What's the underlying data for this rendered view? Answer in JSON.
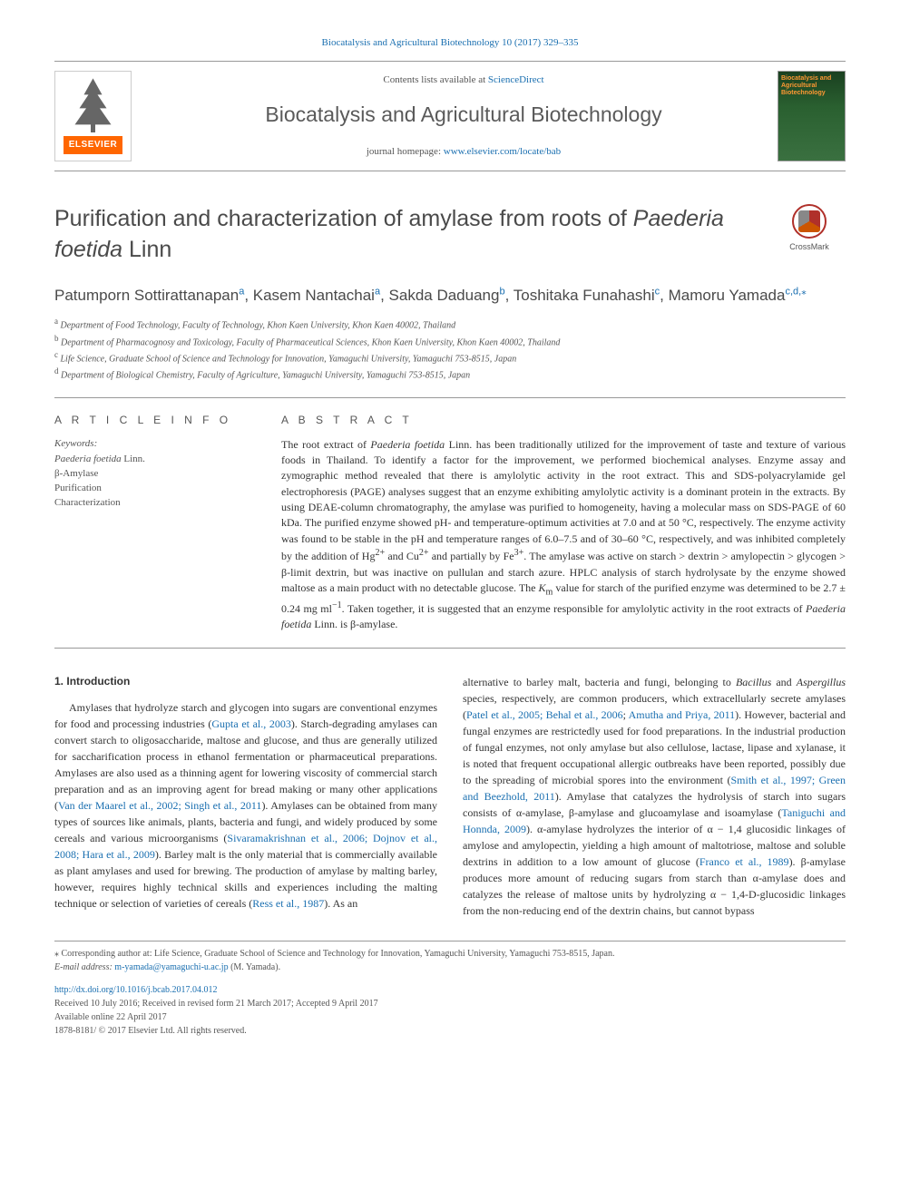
{
  "header": {
    "top_journal_ref": "Biocatalysis and Agricultural Biotechnology 10 (2017) 329–335",
    "contents_prefix": "Contents lists available at ",
    "contents_link": "ScienceDirect",
    "journal_name": "Biocatalysis and Agricultural Biotechnology",
    "homepage_prefix": "journal homepage: ",
    "homepage_link": "www.elsevier.com/locate/bab",
    "elsevier_label": "ELSEVIER",
    "cover_text": "Biocatalysis and Agricultural Biotechnology",
    "crossmark_label": "CrossMark"
  },
  "article": {
    "title_pre": "Purification and characterization of amylase from roots of ",
    "title_species": "Paederia foetida",
    "title_post": " Linn",
    "authors_html": "Patumporn Sottirattanapan<sup>a</sup>, Kasem Nantachai<sup>a</sup>, Sakda Daduang<sup>b</sup>, Toshitaka Funahashi<sup>c</sup>, Mamoru Yamada<sup>c,d,</sup>",
    "corr_mark": "⁎"
  },
  "affiliations": [
    {
      "sup": "a",
      "text": "Department of Food Technology, Faculty of Technology, Khon Kaen University, Khon Kaen 40002, Thailand"
    },
    {
      "sup": "b",
      "text": "Department of Pharmacognosy and Toxicology, Faculty of Pharmaceutical Sciences, Khon Kaen University, Khon Kaen 40002, Thailand"
    },
    {
      "sup": "c",
      "text": "Life Science, Graduate School of Science and Technology for Innovation, Yamaguchi University, Yamaguchi 753-8515, Japan"
    },
    {
      "sup": "d",
      "text": "Department of Biological Chemistry, Faculty of Agriculture, Yamaguchi University, Yamaguchi 753-8515, Japan"
    }
  ],
  "article_info": {
    "heading": "A R T I C L E  I N F O",
    "keywords_label": "Keywords:",
    "keywords": [
      "<em>Paederia foetida</em> Linn.",
      "β-Amylase",
      "Purification",
      "Characterization"
    ]
  },
  "abstract": {
    "heading": "A B S T R A C T",
    "text": "The root extract of <em>Paederia foetida</em> Linn. has been traditionally utilized for the improvement of taste and texture of various foods in Thailand. To identify a factor for the improvement, we performed biochemical analyses. Enzyme assay and zymographic method revealed that there is amylolytic activity in the root extract. This and SDS-polyacrylamide gel electrophoresis (PAGE) analyses suggest that an enzyme exhibiting amylolytic activity is a dominant protein in the extracts. By using DEAE-column chromatography, the amylase was purified to homogeneity, having a molecular mass on SDS-PAGE of 60 kDa. The purified enzyme showed pH- and temperature-optimum activities at 7.0 and at 50 °C, respectively. The enzyme activity was found to be stable in the pH and temperature ranges of 6.0–7.5 and of 30–60 °C, respectively, and was inhibited completely by the addition of Hg<sup>2+</sup> and Cu<sup>2+</sup> and partially by Fe<sup>3+</sup>. The amylase was active on starch > dextrin > amylopectin > glycogen > β-limit dextrin, but was inactive on pullulan and starch azure. HPLC analysis of starch hydrolysate by the enzyme showed maltose as a main product with no detectable glucose. The <em>K</em><sub>m</sub> value for starch of the purified enzyme was determined to be 2.7 ± 0.24 mg ml<sup>−1</sup>. Taken together, it is suggested that an enzyme responsible for amylolytic activity in the root extracts of <em>Paederia foetida</em> Linn. is β-amylase."
  },
  "body": {
    "section_number": "1.",
    "section_title": "Introduction",
    "col1": "Amylases that hydrolyze starch and glycogen into sugars are conventional enzymes for food and processing industries (<span class=\"cite\">Gupta et al., 2003</span>). Starch-degrading amylases can convert starch to oligosaccharide, maltose and glucose, and thus are generally utilized for saccharification process in ethanol fermentation or pharmaceutical preparations. Amylases are also used as a thinning agent for lowering viscosity of commercial starch preparation and as an improving agent for bread making or many other applications (<span class=\"cite\">Van der Maarel et al., 2002; Singh et al., 2011</span>). Amylases can be obtained from many types of sources like animals, plants, bacteria and fungi, and widely produced by some cereals and various microorganisms (<span class=\"cite\">Sivaramakrishnan et al., 2006; Dojnov et al., 2008; Hara et al., 2009</span>). Barley malt is the only material that is commercially available as plant amylases and used for brewing. The production of amylase by malting barley, however, requires highly technical skills and experiences including the malting technique or selection of varieties of cereals (<span class=\"cite\">Ress et al., 1987</span>). As an",
    "col2": "alternative to barley malt, bacteria and fungi, belonging to <em>Bacillus</em> and <em>Aspergillus</em> species, respectively, are common producers, which extracellularly secrete amylases (<span class=\"cite\">Patel et al., 2005; Behal et al., 2006</span>; <span class=\"cite\">Amutha and Priya, 2011</span>). However, bacterial and fungal enzymes are restrictedly used for food preparations. In the industrial production of fungal enzymes, not only amylase but also cellulose, lactase, lipase and xylanase, it is noted that frequent occupational allergic outbreaks have been reported, possibly due to the spreading of microbial spores into the environment (<span class=\"cite\">Smith et al., 1997; Green and Beezhold, 2011</span>). Amylase that catalyzes the hydrolysis of starch into sugars consists of α-amylase, β-amylase and glucoamylase and isoamylase (<span class=\"cite\">Taniguchi and Honnda, 2009</span>). α-amylase hydrolyzes the interior of α − 1,4 glucosidic linkages of amylose and amylopectin, yielding a high amount of maltotriose, maltose and soluble dextrins in addition to a low amount of glucose (<span class=\"cite\">Franco et al., 1989</span>). β-amylase produces more amount of reducing sugars from starch than α-amylase does and catalyzes the release of maltose units by hydrolyzing α − 1,4-D-glucosidic linkages from the non-reducing end of the dextrin chains, but cannot bypass"
  },
  "footer": {
    "corr_note_pre": "⁎ Corresponding author at: Life Science, Graduate School of Science and Technology for Innovation, Yamaguchi University, Yamaguchi 753-8515, Japan.",
    "email_label": "E-mail address: ",
    "email": "m-yamada@yamaguchi-u.ac.jp",
    "email_suffix": " (M. Yamada).",
    "doi": "http://dx.doi.org/10.1016/j.bcab.2017.04.012",
    "received": "Received 10 July 2016; Received in revised form 21 March 2017; Accepted 9 April 2017",
    "available": "Available online 22 April 2017",
    "copyright": "1878-8181/ © 2017 Elsevier Ltd. All rights reserved."
  },
  "colors": {
    "link": "#1a6fb0",
    "text": "#333333",
    "muted": "#555555",
    "elsevier_orange": "#ff6600",
    "crossmark_red": "#b0302a",
    "rule": "#999999"
  }
}
